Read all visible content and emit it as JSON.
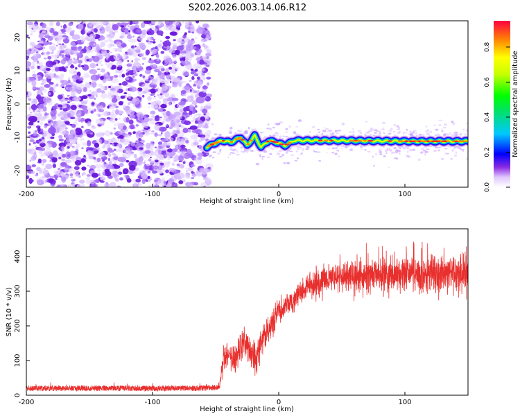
{
  "title": "S202.2026.003.14.06.R12",
  "chart_data": [
    {
      "type": "heatmap",
      "xlabel": "Height of straight line (km)",
      "ylabel": "Frequency (Hz)",
      "xlim": [
        -200,
        150
      ],
      "ylim": [
        -25,
        25
      ],
      "xticks": [
        -200,
        -100,
        0,
        100
      ],
      "yticks": [
        -20,
        -10,
        0,
        10,
        20
      ],
      "noise_region_x": [
        -200,
        -57
      ],
      "tone_segments": [
        {
          "x": -57,
          "y": -13.0
        },
        {
          "x": -52,
          "y": -12.0
        },
        {
          "x": -45,
          "y": -11.0
        },
        {
          "x": -38,
          "y": -11.5
        },
        {
          "x": -30,
          "y": -10.0
        },
        {
          "x": -25,
          "y": -12.5
        },
        {
          "x": -19,
          "y": -9.5
        },
        {
          "x": -14,
          "y": -13.0
        },
        {
          "x": -8,
          "y": -11.0
        },
        {
          "x": -2,
          "y": -11.5
        },
        {
          "x": 5,
          "y": -12.5
        },
        {
          "x": 12,
          "y": -11.0
        },
        {
          "x": 25,
          "y": -11.0
        },
        {
          "x": 50,
          "y": -11.0
        },
        {
          "x": 100,
          "y": -11.2
        },
        {
          "x": 150,
          "y": -11.2
        }
      ],
      "colorbar": {
        "label": "Normalized spectral amplitude",
        "range": [
          0,
          0.95
        ],
        "ticks": [
          "0.0",
          "0.2",
          "0.4",
          "0.6",
          "0.8"
        ]
      }
    },
    {
      "type": "line",
      "xlabel": "Height of straight line (km)",
      "ylabel": "SNR (10 * v/v)",
      "xlim": [
        -200,
        150
      ],
      "ylim": [
        0,
        480
      ],
      "xticks": [
        -200,
        -100,
        0,
        100
      ],
      "yticks": [
        0,
        100,
        200,
        300,
        400
      ],
      "color": "#e8302e",
      "envelope": [
        {
          "x": -200,
          "mean": 20,
          "spread": 8
        },
        {
          "x": -60,
          "mean": 20,
          "spread": 8
        },
        {
          "x": -47,
          "mean": 22,
          "spread": 8
        },
        {
          "x": -44,
          "mean": 110,
          "spread": 40
        },
        {
          "x": -40,
          "mean": 120,
          "spread": 40
        },
        {
          "x": -35,
          "mean": 95,
          "spread": 45
        },
        {
          "x": -28,
          "mean": 160,
          "spread": 45
        },
        {
          "x": -22,
          "mean": 125,
          "spread": 45
        },
        {
          "x": -18,
          "mean": 100,
          "spread": 50
        },
        {
          "x": -12,
          "mean": 170,
          "spread": 45
        },
        {
          "x": -6,
          "mean": 200,
          "spread": 40
        },
        {
          "x": 0,
          "mean": 240,
          "spread": 35
        },
        {
          "x": 10,
          "mean": 270,
          "spread": 35
        },
        {
          "x": 20,
          "mean": 310,
          "spread": 40
        },
        {
          "x": 40,
          "mean": 340,
          "spread": 45
        },
        {
          "x": 70,
          "mean": 345,
          "spread": 50
        },
        {
          "x": 100,
          "mean": 350,
          "spread": 55
        },
        {
          "x": 150,
          "mean": 355,
          "spread": 55
        }
      ]
    }
  ]
}
